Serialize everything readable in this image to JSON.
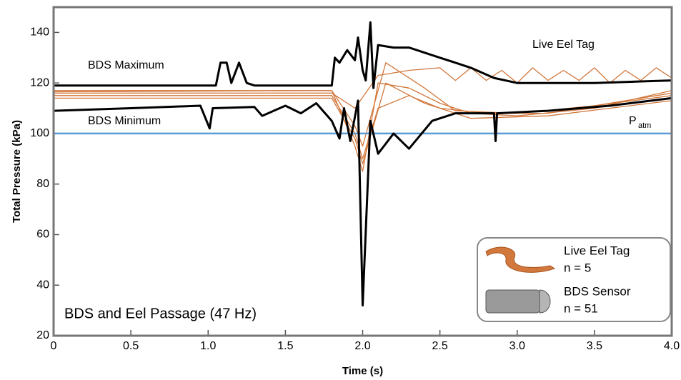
{
  "chart_data": {
    "type": "line",
    "x_label": "Time (s)",
    "y_label": "Total Pressure (kPa)",
    "xlim": [
      0,
      4
    ],
    "ylim": [
      20,
      150
    ],
    "xticks": [
      0,
      0.5,
      {
        "value": 1,
        "label": "1.0"
      },
      1.5,
      {
        "value": 2,
        "label": "2.0"
      },
      2.5,
      {
        "value": 3,
        "label": "3.0"
      },
      3.5,
      {
        "value": 4,
        "label": "4.0"
      }
    ],
    "yticks": [
      20,
      40,
      60,
      80,
      100,
      120,
      140
    ],
    "series": [
      {
        "name": "BDS Maximum",
        "color": "#000000",
        "x": [
          0,
          1.0,
          1.05,
          1.08,
          1.12,
          1.15,
          1.2,
          1.25,
          1.3,
          1.8,
          1.82,
          1.85,
          1.9,
          1.95,
          1.97,
          2.0,
          2.02,
          2.05,
          2.07,
          2.1,
          2.2,
          2.3,
          2.5,
          2.6,
          2.7,
          2.85,
          3.0,
          3.5,
          4.0
        ],
        "values": [
          119,
          119,
          119,
          128,
          128,
          120,
          128,
          120,
          119,
          119,
          130,
          128,
          133,
          129,
          138,
          125,
          121,
          144,
          118,
          135,
          134,
          134,
          130,
          128,
          126,
          122,
          120,
          120,
          121
        ]
      },
      {
        "name": "BDS Minimum",
        "color": "#000000",
        "x": [
          0,
          0.5,
          0.95,
          1.01,
          1.03,
          1.3,
          1.35,
          1.5,
          1.6,
          1.7,
          1.8,
          1.85,
          1.88,
          1.92,
          1.97,
          2.0,
          2.05,
          2.1,
          2.2,
          2.3,
          2.45,
          2.6,
          2.85,
          2.86,
          2.87,
          3.2,
          3.6,
          4.0
        ],
        "values": [
          109,
          110,
          111,
          102,
          110,
          110.5,
          107,
          111,
          108,
          112,
          105,
          98,
          110,
          97,
          113,
          32,
          105,
          92,
          100,
          94,
          105,
          108,
          108,
          97,
          108,
          109,
          111,
          114
        ]
      },
      {
        "color": "#d2783c",
        "x": [
          0,
          1.8,
          1.95,
          2.1,
          2.3,
          2.5,
          2.6,
          2.7,
          2.8,
          2.9,
          3.0,
          3.1,
          3.2,
          3.3,
          3.4,
          3.5,
          3.6,
          3.7,
          3.8,
          3.9,
          4.0
        ],
        "values": [
          116,
          116,
          110,
          123,
          125,
          126,
          121,
          126,
          121,
          125,
          120,
          126,
          121,
          125,
          121,
          126,
          120,
          125,
          121,
          126,
          122
        ]
      },
      {
        "color": "#d2783c",
        "x": [
          0,
          1.8,
          1.95,
          2.0,
          2.1,
          2.3,
          2.5,
          2.7,
          3.0,
          3.5,
          4.0
        ],
        "values": [
          117,
          117,
          95,
          85,
          120,
          118,
          112,
          108,
          107,
          110,
          117
        ]
      },
      {
        "color": "#d2783c",
        "x": [
          0,
          1.8,
          1.95,
          2.0,
          2.1,
          2.3,
          2.5,
          2.8,
          3.2,
          3.6,
          4.0
        ],
        "values": [
          115,
          115,
          100,
          90,
          110,
          115,
          110,
          108,
          108,
          112,
          116
        ]
      },
      {
        "color": "#d2783c",
        "x": [
          0,
          1.8,
          1.95,
          2.0,
          2.15,
          2.4,
          2.7,
          3.2,
          3.6,
          4.0
        ],
        "values": [
          114,
          114,
          98,
          88,
          120,
          112,
          106,
          107,
          110,
          113
        ]
      },
      {
        "color": "#d2783c",
        "x": [
          0,
          1.8,
          1.95,
          2.0,
          2.15,
          2.4,
          2.6,
          3.0,
          3.5,
          4.0
        ],
        "values": [
          116.5,
          117,
          103,
          95,
          128,
          118,
          109,
          108,
          111,
          115
        ]
      },
      {
        "color": "#5b9bd5",
        "x": [
          0,
          4
        ],
        "values": [
          100,
          100
        ]
      }
    ],
    "annotations": {
      "panel": "BDS and Eel Passage (47 Hz)",
      "eel": "Live Eel Tag",
      "patm": "P",
      "patm_sub": "atm"
    },
    "legend": [
      {
        "label": "Live Eel Tag",
        "n": "n = 5",
        "color": "#d2783c"
      },
      {
        "label": "BDS Sensor",
        "n": "n = 51",
        "color": "#000000"
      }
    ]
  }
}
